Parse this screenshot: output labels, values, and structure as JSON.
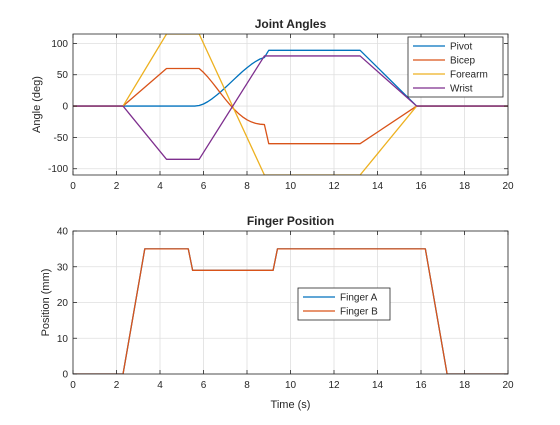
{
  "chart_data": [
    {
      "type": "line",
      "title": "Joint Angles",
      "xlabel": "",
      "ylabel": "Angle (deg)",
      "xlim": [
        0,
        20
      ],
      "ylim": [
        -110,
        115
      ],
      "xticks": [
        0,
        2,
        4,
        6,
        8,
        10,
        12,
        14,
        16,
        18,
        20
      ],
      "yticks": [
        -100,
        -50,
        0,
        50,
        100
      ],
      "grid": true,
      "legend_position": "top-right",
      "series": [
        {
          "name": "Pivot",
          "color": "#0072BD",
          "x": [
            0,
            5.6,
            5.8,
            6.0,
            6.2,
            6.4,
            6.6,
            6.8,
            7.0,
            7.2,
            7.4,
            7.6,
            7.8,
            8.0,
            8.2,
            8.4,
            8.6,
            8.8,
            9.0,
            13.2,
            15.8,
            20
          ],
          "y": [
            0,
            0,
            0.9,
            3.3,
            7.1,
            11.8,
            17.2,
            23.1,
            29.4,
            35.9,
            42.5,
            49.0,
            55.3,
            61.2,
            66.6,
            71.3,
            75.1,
            77.5,
            89,
            89,
            0,
            0
          ]
        },
        {
          "name": "Bicep",
          "color": "#D95319",
          "x": [
            0,
            2.3,
            4.3,
            5.8,
            6.0,
            6.2,
            6.4,
            6.6,
            6.8,
            7.0,
            7.2,
            7.4,
            7.6,
            7.8,
            8.0,
            8.2,
            8.4,
            8.6,
            8.8,
            9.0,
            13.2,
            15.8,
            20
          ],
          "y": [
            0,
            0,
            60,
            60,
            53.7,
            46.2,
            37.8,
            28.9,
            19.9,
            11.1,
            2.8,
            -4.9,
            -11.6,
            -17.3,
            -21.9,
            -25.3,
            -27.6,
            -28.9,
            -29.5,
            -60,
            -60,
            0,
            0
          ]
        },
        {
          "name": "Forearm",
          "color": "#EDB120",
          "x": [
            0,
            2.3,
            4.3,
            5.8,
            8.8,
            13.2,
            15.8,
            20
          ],
          "y": [
            0,
            0,
            115,
            115,
            -110,
            -110,
            0,
            0
          ]
        },
        {
          "name": "Wrist",
          "color": "#7E2F8E",
          "x": [
            0,
            2.3,
            4.3,
            5.8,
            8.8,
            13.2,
            15.8,
            20
          ],
          "y": [
            0,
            0,
            -85,
            -85,
            80,
            80,
            0,
            0
          ]
        }
      ]
    },
    {
      "type": "line",
      "title": "Finger Position",
      "xlabel": "Time (s)",
      "ylabel": "Position (mm)",
      "xlim": [
        0,
        20
      ],
      "ylim": [
        0,
        40
      ],
      "xticks": [
        0,
        2,
        4,
        6,
        8,
        10,
        12,
        14,
        16,
        18,
        20
      ],
      "yticks": [
        0,
        10,
        20,
        30,
        40
      ],
      "grid": true,
      "legend_position": "center",
      "series": [
        {
          "name": "Finger A",
          "color": "#0072BD",
          "x": [
            0,
            2.3,
            3.3,
            5.3,
            5.5,
            9.2,
            9.4,
            16.2,
            17.2,
            20
          ],
          "y": [
            0,
            0,
            35,
            35,
            29,
            29,
            35,
            35,
            0,
            0
          ]
        },
        {
          "name": "Finger B",
          "color": "#D95319",
          "x": [
            0,
            2.3,
            3.3,
            5.3,
            5.5,
            9.2,
            9.4,
            16.2,
            17.2,
            20
          ],
          "y": [
            0,
            0,
            35,
            35,
            29,
            29,
            35,
            35,
            0,
            0
          ]
        }
      ]
    }
  ]
}
